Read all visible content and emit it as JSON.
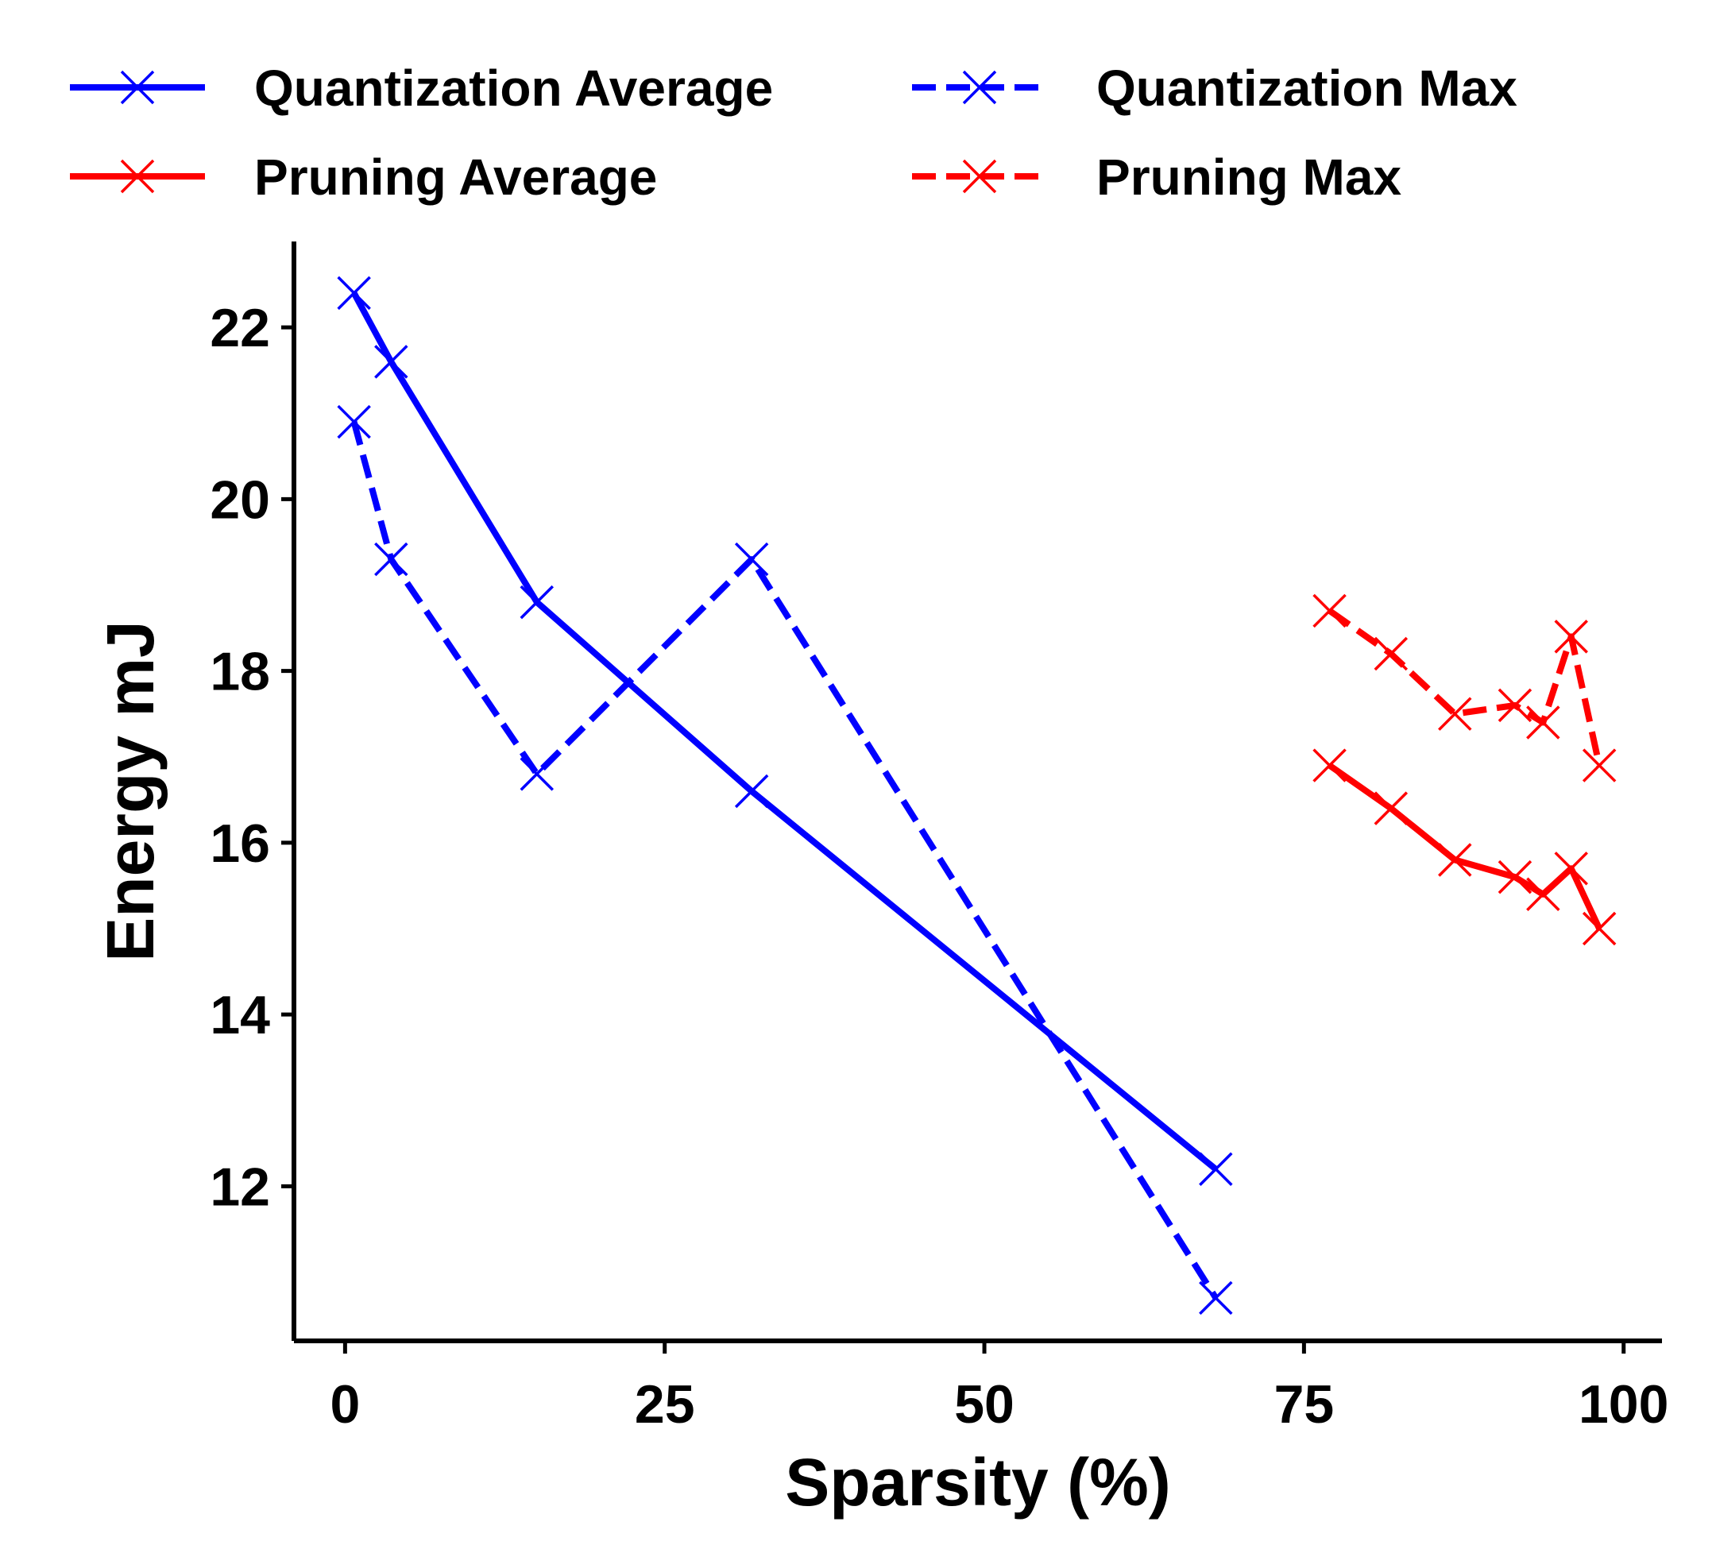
{
  "chart_data": {
    "type": "line",
    "xlabel": "Sparsity (%)",
    "ylabel": "Energy mJ",
    "xlim": [
      -4,
      103
    ],
    "ylim": [
      10.2,
      23.0
    ],
    "xticks": [
      0,
      25,
      50,
      75,
      100
    ],
    "yticks": [
      12,
      14,
      16,
      18,
      20,
      22
    ],
    "xtick_labels": [
      "0",
      "25",
      "50",
      "75",
      "100"
    ],
    "ytick_labels": [
      "12",
      "14",
      "16",
      "18",
      "20",
      "22"
    ],
    "grid": false,
    "legend_position": "top",
    "series": [
      {
        "name": "Quantization Average",
        "color": "#0000ff",
        "line_style": "solid",
        "marker": "x",
        "points": [
          [
            0.7,
            22.4
          ],
          [
            3.6,
            21.6
          ],
          [
            15.0,
            18.8
          ],
          [
            31.8,
            16.6
          ],
          [
            68.1,
            12.2
          ]
        ]
      },
      {
        "name": "Quantization Max",
        "color": "#0000ff",
        "line_style": "dashed",
        "marker": "x",
        "points": [
          [
            0.7,
            20.9
          ],
          [
            3.6,
            19.3
          ],
          [
            15.0,
            16.8
          ],
          [
            31.8,
            19.3
          ],
          [
            68.1,
            10.7
          ]
        ]
      },
      {
        "name": "Pruning Average",
        "color": "#ff0000",
        "line_style": "solid",
        "marker": "x",
        "points": [
          [
            77.0,
            16.9
          ],
          [
            81.8,
            16.4
          ],
          [
            86.8,
            15.8
          ],
          [
            91.5,
            15.6
          ],
          [
            93.7,
            15.4
          ],
          [
            95.9,
            15.7
          ],
          [
            98.1,
            15.0
          ]
        ]
      },
      {
        "name": "Pruning Max",
        "color": "#ff0000",
        "line_style": "dashed",
        "marker": "x",
        "points": [
          [
            77.0,
            18.7
          ],
          [
            81.8,
            18.2
          ],
          [
            86.8,
            17.5
          ],
          [
            91.5,
            17.6
          ],
          [
            93.7,
            17.4
          ],
          [
            95.9,
            18.4
          ],
          [
            98.1,
            16.9
          ]
        ]
      }
    ]
  }
}
